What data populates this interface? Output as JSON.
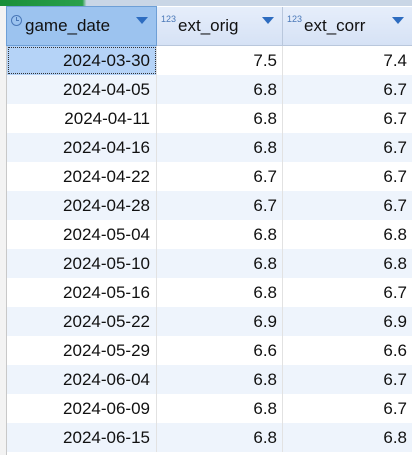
{
  "columns": [
    {
      "label": "game_date",
      "type_icon": "clock-icon",
      "sort_icon": "chevron-down-icon"
    },
    {
      "label": "ext_orig",
      "type_icon": "123",
      "sort_icon": "chevron-down-icon"
    },
    {
      "label": "ext_corr",
      "type_icon": "123",
      "sort_icon": "chevron-down-icon"
    }
  ],
  "rows": [
    {
      "game_date": "2024-03-30",
      "ext_orig": "7.5",
      "ext_corr": "7.4"
    },
    {
      "game_date": "2024-04-05",
      "ext_orig": "6.8",
      "ext_corr": "6.7"
    },
    {
      "game_date": "2024-04-11",
      "ext_orig": "6.8",
      "ext_corr": "6.7"
    },
    {
      "game_date": "2024-04-16",
      "ext_orig": "6.8",
      "ext_corr": "6.7"
    },
    {
      "game_date": "2024-04-22",
      "ext_orig": "6.7",
      "ext_corr": "6.7"
    },
    {
      "game_date": "2024-04-28",
      "ext_orig": "6.7",
      "ext_corr": "6.7"
    },
    {
      "game_date": "2024-05-04",
      "ext_orig": "6.8",
      "ext_corr": "6.8"
    },
    {
      "game_date": "2024-05-10",
      "ext_orig": "6.8",
      "ext_corr": "6.8"
    },
    {
      "game_date": "2024-05-16",
      "ext_orig": "6.8",
      "ext_corr": "6.7"
    },
    {
      "game_date": "2024-05-22",
      "ext_orig": "6.9",
      "ext_corr": "6.9"
    },
    {
      "game_date": "2024-05-29",
      "ext_orig": "6.6",
      "ext_corr": "6.6"
    },
    {
      "game_date": "2024-06-04",
      "ext_orig": "6.8",
      "ext_corr": "6.7"
    },
    {
      "game_date": "2024-06-09",
      "ext_orig": "6.8",
      "ext_corr": "6.7"
    },
    {
      "game_date": "2024-06-15",
      "ext_orig": "6.8",
      "ext_corr": "6.8"
    }
  ],
  "colors": {
    "header_bg": "#d6e2f5",
    "selected_header_bg": "#9cc3ef",
    "selected_cell_bg": "#b5d3f7",
    "alt_row_bg": "#eef4fc",
    "sort_icon": "#2d6cc0"
  }
}
